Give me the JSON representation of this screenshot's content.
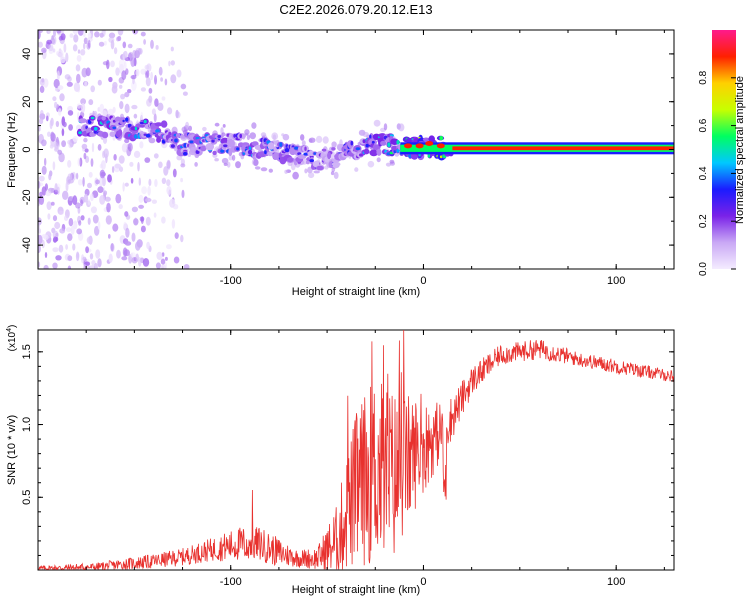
{
  "figure": {
    "title": "C2E2.2026.079.20.12.E13"
  },
  "chart_data": [
    {
      "type": "heatmap",
      "xlabel": "Height of straight line (km)",
      "ylabel": "Frequency (Hz)",
      "xlim": [
        -200,
        130
      ],
      "ylim": [
        -50,
        50
      ],
      "xticks": [
        -100,
        0,
        100
      ],
      "yticks": [
        -40,
        -20,
        0,
        20,
        40
      ],
      "colorbar": {
        "label": "Normalized spectral amplitude",
        "range": [
          0,
          1
        ],
        "ticks": [
          "0.0",
          "0.2",
          "0.4",
          "0.6",
          "0.8"
        ],
        "colors": [
          "#f4ecff",
          "#c9a8f5",
          "#7a22e8",
          "#1b1bff",
          "#00c8ff",
          "#00ff60",
          "#c8ff00",
          "#ffd000",
          "#ff2000",
          "#ff1a8c"
        ]
      },
      "ridge": [
        {
          "x": -165,
          "f": 10,
          "amp": 0.6
        },
        {
          "x": -155,
          "f": 9,
          "amp": 0.55
        },
        {
          "x": -145,
          "f": 8,
          "amp": 0.6
        },
        {
          "x": -135,
          "f": 7,
          "amp": 0.55
        },
        {
          "x": -125,
          "f": 2,
          "amp": 0.5
        },
        {
          "x": -115,
          "f": 3,
          "amp": 0.5
        },
        {
          "x": -105,
          "f": 2,
          "amp": 0.55
        },
        {
          "x": -95,
          "f": 2,
          "amp": 0.5
        },
        {
          "x": -85,
          "f": 1,
          "amp": 0.55
        },
        {
          "x": -75,
          "f": -1,
          "amp": 0.5
        },
        {
          "x": -65,
          "f": -3,
          "amp": 0.5
        },
        {
          "x": -55,
          "f": -4,
          "amp": 0.45
        },
        {
          "x": -45,
          "f": -3,
          "amp": 0.45
        },
        {
          "x": -35,
          "f": 0,
          "amp": 0.5
        },
        {
          "x": -25,
          "f": 2,
          "amp": 0.6
        },
        {
          "x": -15,
          "f": 2,
          "amp": 0.7
        },
        {
          "x": -5,
          "f": 1,
          "amp": 0.8
        },
        {
          "x": 5,
          "f": 1,
          "amp": 0.9
        },
        {
          "x": 15,
          "f": 0.5,
          "amp": 1.0
        },
        {
          "x": 130,
          "f": 0.5,
          "amp": 1.0
        }
      ]
    },
    {
      "type": "line",
      "xlabel": "Height of straight line (km)",
      "ylabel": "SNR (10 * v/v)",
      "yscale_label": "(x10",
      "yscale_exp": "4",
      "xlim": [
        -200,
        130
      ],
      "ylim": [
        0,
        1.65
      ],
      "xticks": [
        -100,
        0,
        100
      ],
      "yticks": [
        0.5,
        1.0,
        1.5
      ],
      "ytick_labels": [
        "0.5",
        "1.0",
        "1.5"
      ],
      "color": "#e8312e",
      "envelope": [
        {
          "x": -200,
          "base": 0.01,
          "amp": 0.02
        },
        {
          "x": -170,
          "base": 0.02,
          "amp": 0.03
        },
        {
          "x": -140,
          "base": 0.06,
          "amp": 0.05
        },
        {
          "x": -125,
          "base": 0.09,
          "amp": 0.06
        },
        {
          "x": -110,
          "base": 0.14,
          "amp": 0.08
        },
        {
          "x": -95,
          "base": 0.18,
          "amp": 0.12
        },
        {
          "x": -85,
          "base": 0.18,
          "amp": 0.12
        },
        {
          "x": -75,
          "base": 0.12,
          "amp": 0.1
        },
        {
          "x": -65,
          "base": 0.08,
          "amp": 0.06
        },
        {
          "x": -55,
          "base": 0.08,
          "amp": 0.08
        },
        {
          "x": -45,
          "base": 0.2,
          "amp": 0.25
        },
        {
          "x": -35,
          "base": 0.55,
          "amp": 0.55
        },
        {
          "x": -25,
          "base": 0.7,
          "amp": 0.65
        },
        {
          "x": -15,
          "base": 0.65,
          "amp": 0.6
        },
        {
          "x": -5,
          "base": 0.8,
          "amp": 0.4
        },
        {
          "x": 5,
          "base": 0.9,
          "amp": 0.25
        },
        {
          "x": 15,
          "base": 1.05,
          "amp": 0.15
        },
        {
          "x": 25,
          "base": 1.3,
          "amp": 0.1
        },
        {
          "x": 40,
          "base": 1.48,
          "amp": 0.07
        },
        {
          "x": 60,
          "base": 1.52,
          "amp": 0.07
        },
        {
          "x": 80,
          "base": 1.45,
          "amp": 0.05
        },
        {
          "x": 100,
          "base": 1.4,
          "amp": 0.05
        },
        {
          "x": 130,
          "base": 1.33,
          "amp": 0.04
        }
      ]
    }
  ]
}
